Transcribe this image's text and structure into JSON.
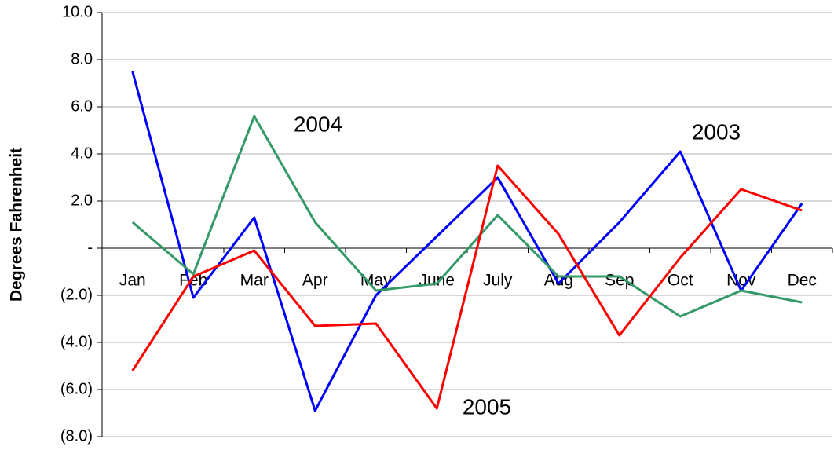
{
  "chart_data": {
    "type": "line",
    "y_label": "Degrees Fahrenheit",
    "categories": [
      "Jan",
      "Feb",
      "Mar",
      "Apr",
      "May",
      "June",
      "July",
      "Aug",
      "Sep",
      "Oct",
      "Nov",
      "Dec"
    ],
    "series": [
      {
        "name": "2003",
        "color": "#0000ff",
        "values": [
          7.5,
          -2.1,
          1.3,
          -6.9,
          -2.0,
          0.5,
          3.0,
          -1.5,
          1.1,
          4.1,
          -1.8,
          1.9
        ]
      },
      {
        "name": "2004",
        "color": "#339966",
        "values": [
          1.1,
          -1.1,
          5.6,
          1.1,
          -1.8,
          -1.5,
          1.4,
          -1.2,
          -1.2,
          -2.9,
          -1.8,
          -2.3
        ]
      },
      {
        "name": "2005",
        "color": "#ff0000",
        "values": [
          -5.2,
          -1.2,
          -0.1,
          -3.3,
          -3.2,
          -6.8,
          3.5,
          0.6,
          -3.7,
          -0.4,
          2.5,
          1.6
        ]
      }
    ],
    "ylim": [
      -8,
      10
    ],
    "yticks": [
      {
        "value": -8,
        "label": "(8.0)"
      },
      {
        "value": -6,
        "label": "(6.0)"
      },
      {
        "value": -4,
        "label": "(4.0)"
      },
      {
        "value": -2,
        "label": "(2.0)"
      },
      {
        "value": 0,
        "label": "-"
      },
      {
        "value": 2,
        "label": "2.0"
      },
      {
        "value": 4,
        "label": "4.0"
      },
      {
        "value": 6,
        "label": "6.0"
      },
      {
        "value": 8,
        "label": "8.0"
      },
      {
        "value": 10,
        "label": "10.0"
      }
    ],
    "grid": true
  }
}
